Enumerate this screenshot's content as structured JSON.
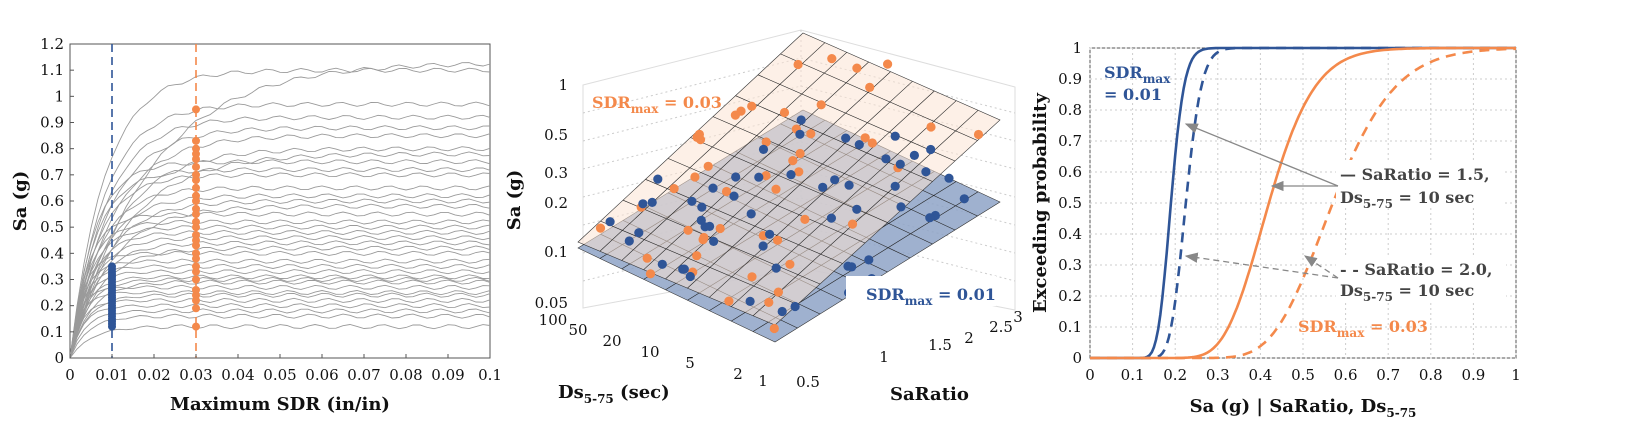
{
  "colors": {
    "blue": "#2f5597",
    "orange": "#f4894b",
    "gray": "#9a9a9a",
    "bluePlane": "#8ea3c7",
    "orangePlane": "#fbe3d3"
  },
  "chart_data": [
    {
      "type": "line",
      "panel": "left",
      "xlabel": "Maximum SDR (in/in)",
      "ylabel": "Sa (g)",
      "xlim": [
        0,
        0.1
      ],
      "ylim": [
        0,
        1.2
      ],
      "xticks": [
        "0",
        "0.01",
        "0.02",
        "0.03",
        "0.04",
        "0.05",
        "0.06",
        "0.07",
        "0.08",
        "0.09",
        "0.1"
      ],
      "yticks": [
        "0",
        "0.1",
        "0.2",
        "0.3",
        "0.4",
        "0.5",
        "0.6",
        "0.7",
        "0.8",
        "0.9",
        "1",
        "1.1",
        "1.2"
      ],
      "vlines": [
        {
          "x": 0.01,
          "color": "blue"
        },
        {
          "x": 0.03,
          "color": "orange"
        }
      ],
      "ida_plateaus": [
        0.12,
        0.16,
        0.18,
        0.2,
        0.22,
        0.25,
        0.27,
        0.29,
        0.3,
        0.31,
        0.33,
        0.35,
        0.37,
        0.4,
        0.42,
        0.44,
        0.46,
        0.48,
        0.5,
        0.52,
        0.55,
        0.58,
        0.6,
        0.62,
        0.65,
        0.7,
        0.72,
        0.75,
        0.78,
        0.8,
        0.85,
        0.88,
        0.92,
        0.97,
        1.1,
        1.13,
        0.24
      ],
      "points_at_0_01": [
        0.12,
        0.13,
        0.14,
        0.15,
        0.16,
        0.17,
        0.18,
        0.19,
        0.2,
        0.21,
        0.22,
        0.23,
        0.24,
        0.25,
        0.26,
        0.27,
        0.28,
        0.29,
        0.3,
        0.31,
        0.32,
        0.33,
        0.34,
        0.35
      ],
      "points_at_0_03": [
        0.12,
        0.19,
        0.22,
        0.24,
        0.26,
        0.3,
        0.33,
        0.35,
        0.38,
        0.4,
        0.43,
        0.45,
        0.47,
        0.5,
        0.52,
        0.55,
        0.57,
        0.6,
        0.62,
        0.65,
        0.68,
        0.7,
        0.73,
        0.76,
        0.78,
        0.8,
        0.83,
        0.95
      ]
    },
    {
      "type": "scatter",
      "panel": "middle-3d",
      "zlabel": "Sa (g)",
      "xlabel": "Ds",
      "xlabel_sub": "5-75",
      "xlabel_suffix": " (sec)",
      "ylabel": "SaRatio",
      "ds_ticks": [
        "100",
        "50",
        "20",
        "10",
        "5",
        "2",
        "1"
      ],
      "saratio_ticks": [
        "0.5",
        "1",
        "1.5",
        "2",
        "2.5",
        "3"
      ],
      "z_ticks": [
        "1",
        "0.5",
        "0.3",
        "0.2",
        "0.1",
        "0.05"
      ],
      "orange_label": "SDR",
      "orange_label_sub": "max",
      "orange_label_suffix": " = 0.03",
      "blue_label": "SDR",
      "blue_label_sub": "max",
      "blue_label_suffix": " = 0.01"
    },
    {
      "type": "line",
      "panel": "right",
      "xlabel": "Sa (g) | SaRatio, Ds",
      "xlabel_sub": "5-75",
      "ylabel": "Exceeding probability",
      "xlim": [
        0,
        1
      ],
      "ylim": [
        0,
        1
      ],
      "xticks": [
        "0",
        "0.1",
        "0.2",
        "0.3",
        "0.4",
        "0.5",
        "0.6",
        "0.7",
        "0.8",
        "0.9",
        "1"
      ],
      "yticks": [
        "0",
        "0.1",
        "0.2",
        "0.3",
        "0.4",
        "0.5",
        "0.6",
        "0.7",
        "0.8",
        "0.9",
        "1"
      ],
      "series": [
        {
          "style": "solid",
          "color": "blue",
          "median": 0.19,
          "beta": 0.13
        },
        {
          "style": "dashed",
          "color": "blue",
          "median": 0.225,
          "beta": 0.13
        },
        {
          "style": "solid",
          "color": "orange",
          "median": 0.42,
          "beta": 0.2
        },
        {
          "style": "dashed",
          "color": "orange",
          "median": 0.57,
          "beta": 0.2
        }
      ],
      "ann_sdr01_l1": "SDR",
      "ann_sdr01_sub": "max",
      "ann_sdr01_l2": "= 0.01",
      "ann_sdr03": "SDR",
      "ann_sdr03_sub": "max",
      "ann_sdr03_suffix": " = 0.03",
      "ann_case1_l1": "— SaRatio = 1.5,",
      "ann_case1_l2": "Ds",
      "ann_case1_sub": "5-75",
      "ann_case1_suffix": " = 10 sec",
      "ann_case2_l1": "- - SaRatio = 2.0,",
      "ann_case2_l2": "Ds",
      "ann_case2_sub": "5-75",
      "ann_case2_suffix": " = 10 sec"
    }
  ]
}
